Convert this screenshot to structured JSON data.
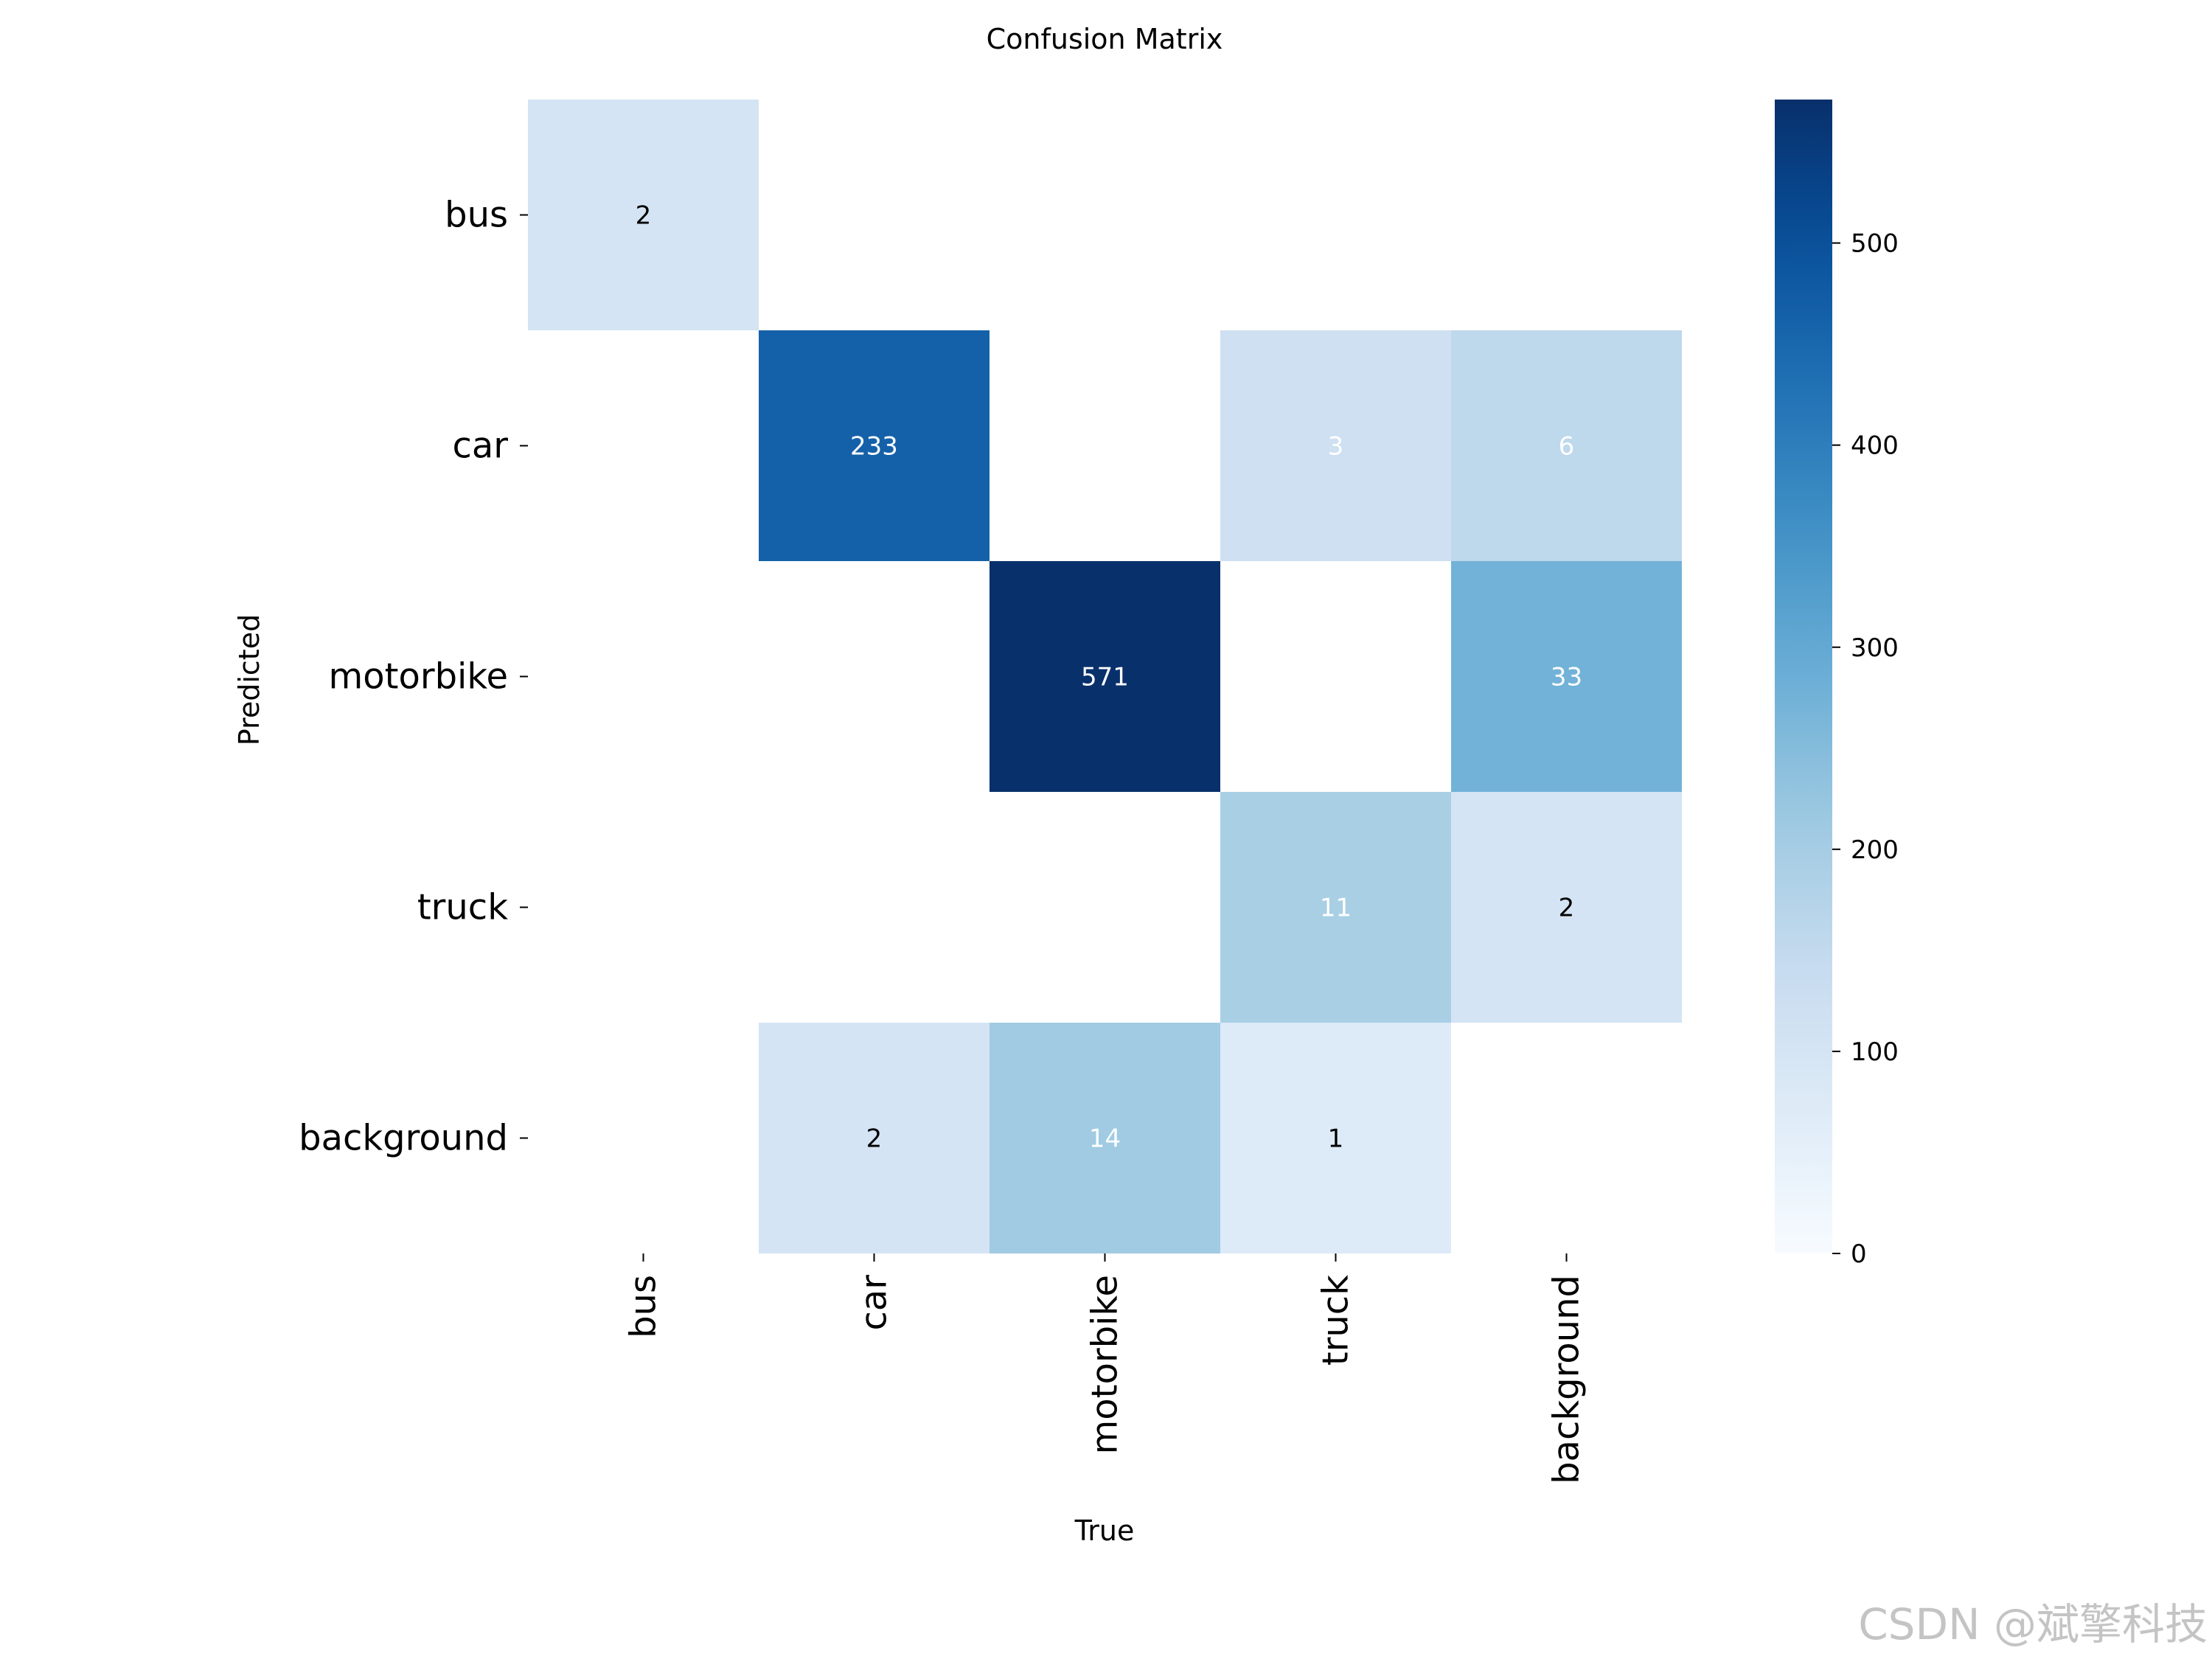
{
  "chart_data": {
    "type": "heatmap",
    "title": "Confusion Matrix",
    "xlabel": "True",
    "ylabel": "Predicted",
    "x_categories": [
      "bus",
      "car",
      "motorbike",
      "truck",
      "background"
    ],
    "y_categories": [
      "bus",
      "car",
      "motorbike",
      "truck",
      "background"
    ],
    "values": [
      [
        2,
        null,
        null,
        null,
        null
      ],
      [
        null,
        233,
        null,
        3,
        6
      ],
      [
        null,
        null,
        571,
        null,
        33
      ],
      [
        null,
        null,
        null,
        11,
        2
      ],
      [
        null,
        2,
        14,
        1,
        null
      ]
    ],
    "colorbar": {
      "min": 0,
      "max": 571,
      "ticks": [
        0,
        100,
        200,
        300,
        400,
        500
      ],
      "colormap": "Blues"
    },
    "grid": false
  },
  "watermark": "CSDN @斌擎科技"
}
